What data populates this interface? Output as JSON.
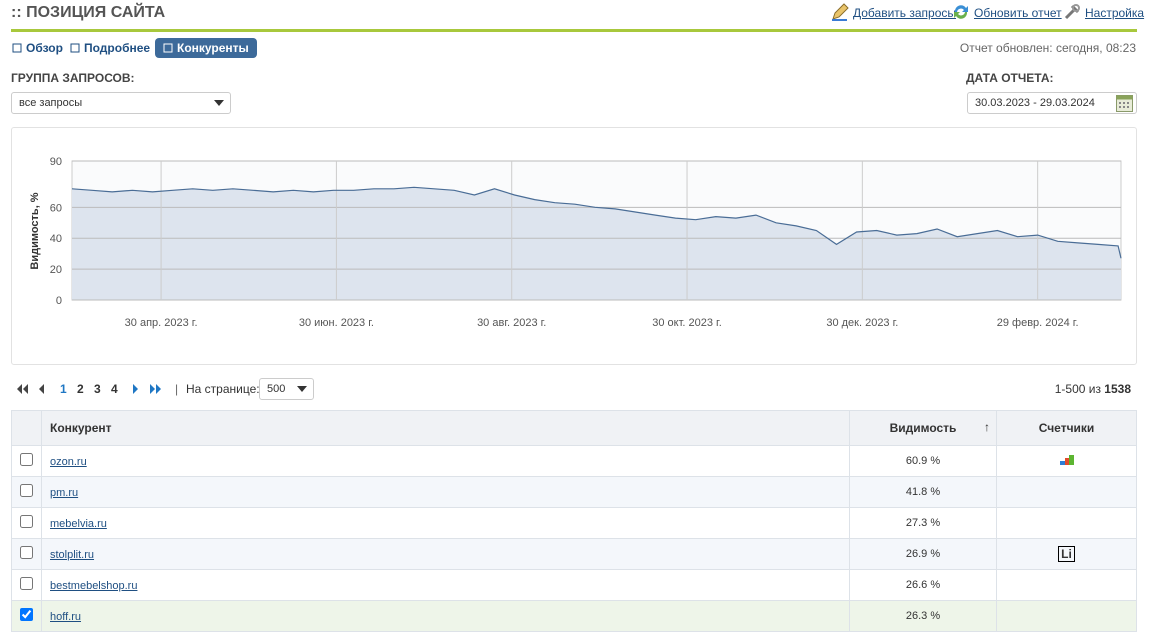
{
  "header": {
    "title": ":: ПОЗИЦИЯ САЙТА",
    "actions": [
      "Добавить запросы",
      "Обновить отчет",
      "Настройка"
    ]
  },
  "tabs": [
    "Обзор",
    "Подробнее",
    "Конкуренты"
  ],
  "active_tab": 2,
  "report_updated": "Отчет обновлен: сегодня, 08:23",
  "filters": {
    "group_label": "ГРУППА ЗАПРОСОВ:",
    "group_value": "все запросы",
    "date_label": "ДАТА ОТЧЕТА:",
    "date_value": "30.03.2023 - 29.03.2024"
  },
  "chart_data": {
    "type": "line",
    "y_label": "Видимость, %",
    "color": "#4a6d96",
    "fill": "#dde4ee",
    "grid": true,
    "x": [
      "2023-03-30",
      "2023-04-06",
      "2023-04-13",
      "2023-04-20",
      "2023-04-27",
      "2023-05-04",
      "2023-05-11",
      "2023-05-18",
      "2023-05-25",
      "2023-06-01",
      "2023-06-08",
      "2023-06-15",
      "2023-06-22",
      "2023-06-29",
      "2023-07-06",
      "2023-07-13",
      "2023-07-20",
      "2023-07-27",
      "2023-08-03",
      "2023-08-10",
      "2023-08-17",
      "2023-08-24",
      "2023-08-31",
      "2023-09-07",
      "2023-09-14",
      "2023-09-21",
      "2023-09-28",
      "2023-10-05",
      "2023-10-12",
      "2023-10-19",
      "2023-10-26",
      "2023-11-02",
      "2023-11-09",
      "2023-11-16",
      "2023-11-23",
      "2023-11-30",
      "2023-12-07",
      "2023-12-14",
      "2023-12-21",
      "2023-12-28",
      "2024-01-04",
      "2024-01-11",
      "2024-01-18",
      "2024-01-25",
      "2024-02-01",
      "2024-02-08",
      "2024-02-15",
      "2024-02-22",
      "2024-02-29",
      "2024-03-07",
      "2024-03-14",
      "2024-03-21",
      "2024-03-28",
      "2024-03-29"
    ],
    "values": [
      72,
      71,
      70,
      71,
      70,
      71,
      72,
      71,
      72,
      71,
      70,
      71,
      70,
      71,
      71,
      72,
      72,
      73,
      72,
      71,
      68,
      72,
      68,
      65,
      63,
      62,
      60,
      59,
      57,
      55,
      53,
      52,
      54,
      53,
      55,
      50,
      48,
      45,
      36,
      44,
      45,
      42,
      43,
      46,
      41,
      43,
      45,
      41,
      42,
      38,
      37,
      36,
      35,
      27
    ],
    "xlim": [
      "2023-03-30",
      "2024-03-29"
    ],
    "xticks": [
      {
        "value": "2023-04-30",
        "label": "30 апр. 2023 г."
      },
      {
        "value": "2023-06-30",
        "label": "30 июн. 2023 г."
      },
      {
        "value": "2023-08-30",
        "label": "30 авг. 2023 г."
      },
      {
        "value": "2023-10-30",
        "label": "30 окт. 2023 г."
      },
      {
        "value": "2023-12-30",
        "label": "30 дек. 2023 г."
      },
      {
        "value": "2024-02-29",
        "label": "29 февр. 2024 г."
      }
    ],
    "ylim": [
      0,
      90
    ],
    "yticks": [
      0,
      20,
      40,
      60,
      90
    ]
  },
  "pagination": {
    "pages": [
      1,
      2,
      3,
      4
    ],
    "current_page": 1,
    "per_page_label": "На странице:",
    "per_page": 500,
    "range_text": "1-500 из",
    "total": 1538
  },
  "table": {
    "columns": [
      "Конкурент",
      "Видимость",
      "Счетчики"
    ],
    "rows": [
      {
        "domain": "ozon.ru",
        "visibility": "60.9 %",
        "checked": false
      },
      {
        "domain": "pm.ru",
        "visibility": "41.8 %",
        "checked": false
      },
      {
        "domain": "mebelvia.ru",
        "visibility": "27.3 %",
        "checked": false
      },
      {
        "domain": "stolplit.ru",
        "visibility": "26.9 %",
        "checked": false,
        "counter": "Li"
      },
      {
        "domain": "bestmebelshop.ru",
        "visibility": "26.6 %",
        "checked": false
      },
      {
        "domain": "hoff.ru",
        "visibility": "26.3 %",
        "checked": true
      }
    ]
  }
}
